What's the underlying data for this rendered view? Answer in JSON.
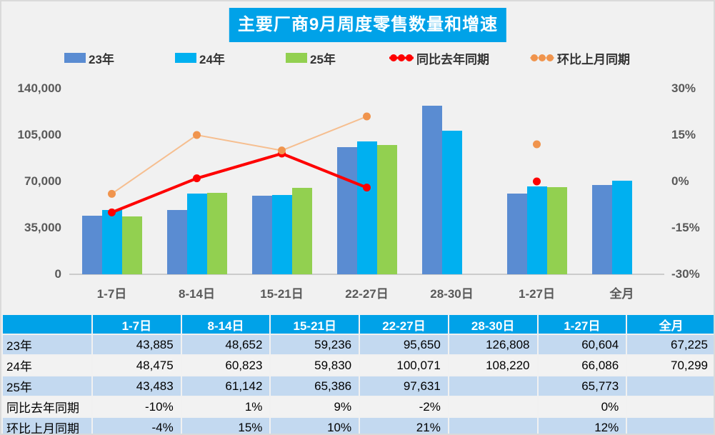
{
  "chart": {
    "title": "主要厂商9月周度零售数量和增速",
    "legend": [
      {
        "label": "23年",
        "type": "bar",
        "color": "#5A8CD2"
      },
      {
        "label": "24年",
        "type": "bar",
        "color": "#00B0F0"
      },
      {
        "label": "25年",
        "type": "bar",
        "color": "#92D050"
      },
      {
        "label": "同比去年同期",
        "type": "line",
        "color": "#FE0000",
        "line_color": "#FE0000",
        "line_width": 3
      },
      {
        "label": "环比上月同期",
        "type": "line",
        "color": "#F0944D",
        "line_color": "#F6BE8F",
        "line_width": 2
      }
    ]
  },
  "chart_data": {
    "type": "bar+line dual-axis combo",
    "categories": [
      "1-7日",
      "8-14日",
      "15-21日",
      "22-27日",
      "28-30日",
      "1-27日",
      "全月"
    ],
    "bar_series": [
      {
        "name": "23年",
        "color": "#5A8CD2",
        "axis": "left",
        "values": [
          43885,
          48652,
          59236,
          95650,
          126808,
          60604,
          67225
        ]
      },
      {
        "name": "24年",
        "color": "#00B0F0",
        "axis": "left",
        "values": [
          48475,
          60823,
          59830,
          100071,
          108220,
          66086,
          70299
        ]
      },
      {
        "name": "25年",
        "color": "#92D050",
        "axis": "left",
        "values": [
          43483,
          61142,
          65386,
          97631,
          null,
          65773,
          null
        ]
      }
    ],
    "line_series": [
      {
        "name": "同比去年同期",
        "marker_color": "#FE0000",
        "line_color": "#FE0000",
        "line_width": 4,
        "axis": "right",
        "unit": "%",
        "values": [
          -10,
          1,
          9,
          -2,
          null,
          0,
          null
        ]
      },
      {
        "name": "环比上月同期",
        "marker_color": "#F0944D",
        "line_color": "#F6BE8F",
        "line_width": 2,
        "axis": "right",
        "unit": "%",
        "values": [
          -4,
          15,
          10,
          21,
          null,
          12,
          null
        ]
      }
    ],
    "left_axis": {
      "min": 0,
      "max": 140000,
      "tick_values": [
        0,
        35000,
        70000,
        105000,
        140000
      ],
      "tick_labels": [
        "0",
        "35,000",
        "70,000",
        "105,000",
        "140,000"
      ]
    },
    "right_axis": {
      "min": -30,
      "max": 30,
      "tick_values": [
        -30,
        -15,
        0,
        15,
        30
      ],
      "tick_labels": [
        "-30%",
        "-15%",
        "0%",
        "15%",
        "30%"
      ]
    },
    "grid": false,
    "legend_position": "top"
  },
  "table": {
    "header": [
      "",
      "1-7日",
      "8-14日",
      "15-21日",
      "22-27日",
      "28-30日",
      "1-27日",
      "全月"
    ],
    "rows": [
      {
        "label": "23年",
        "values": [
          "43,885",
          "48,652",
          "59,236",
          "95,650",
          "126,808",
          "60,604",
          "67,225"
        ]
      },
      {
        "label": "24年",
        "values": [
          "48,475",
          "60,823",
          "59,830",
          "100,071",
          "108,220",
          "66,086",
          "70,299"
        ]
      },
      {
        "label": "25年",
        "values": [
          "43,483",
          "61,142",
          "65,386",
          "97,631",
          "",
          "65,773",
          ""
        ]
      },
      {
        "label": "同比去年同期",
        "values": [
          "-10%",
          "1%",
          "9%",
          "-2%",
          "",
          "0%",
          ""
        ]
      },
      {
        "label": "环比上月同期",
        "values": [
          "-4%",
          "15%",
          "10%",
          "21%",
          "",
          "12%",
          ""
        ]
      }
    ]
  },
  "colors": {
    "title_bg": "#00A2E8",
    "title_text": "#FFFFFF",
    "page_bg": "#F1F1F1",
    "table_header_bg": "#00A2E8",
    "table_row_blue": "#C3D9F0",
    "table_row_gray": "#F2F2F2",
    "axis_text": "#595959",
    "baseline": "#CBCBCB",
    "legend_text": "#333333"
  }
}
